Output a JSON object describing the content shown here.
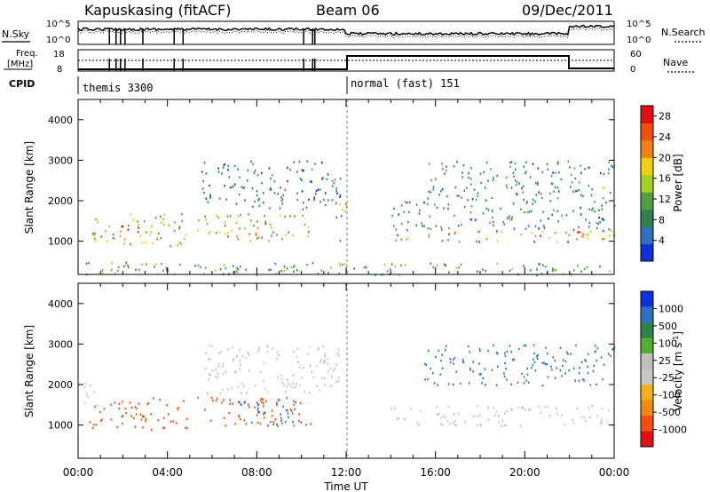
{
  "header": {
    "station": "Kapuskasing (fitACF)",
    "beam": "Beam 06",
    "date": "09/Dec/2011"
  },
  "noise_panel": {
    "left_label": "N.Sky",
    "right_label": "N.Search",
    "left_ticks": [
      "10^5",
      "10^0"
    ],
    "right_ticks": [
      "10^5",
      "10^0"
    ]
  },
  "freq_panel": {
    "left_label_line1": "Freq.",
    "left_label_line2": "[MHz]",
    "right_label": "Nave",
    "left_ticks": [
      "18",
      "8"
    ],
    "right_ticks": [
      "60",
      "0"
    ]
  },
  "cpid": {
    "label": "CPID",
    "segments": [
      {
        "name": "themis 3300",
        "start_hour": 0
      },
      {
        "name": "normal (fast) 151",
        "start_hour": 12
      }
    ]
  },
  "colors": {
    "power": [
      "#1030d8",
      "#3070c0",
      "#308050",
      "#50a040",
      "#a0d020",
      "#f0d010",
      "#f08010",
      "#f05010",
      "#e01010"
    ],
    "velocity": [
      "#e01010",
      "#f05010",
      "#f08a10",
      "#f0b020",
      "#c8c8c0",
      "#c0c0b8",
      "#50b030",
      "#308050",
      "#3070c0",
      "#1030d8"
    ]
  },
  "chart_data": [
    {
      "type": "heatmap",
      "panel": "power",
      "xlabel": "",
      "ylabel": "Slant Range [km]",
      "x_range_hours": [
        0,
        24
      ],
      "ylim": [
        180,
        4500
      ],
      "y_ticks": [
        "1000",
        "2000",
        "3000",
        "4000"
      ],
      "colorbar": {
        "title": "Power [dB]",
        "ticks": [
          "4",
          "8",
          "12",
          "16",
          "20",
          "24",
          "28"
        ],
        "range": [
          0,
          30
        ]
      },
      "bands": [
        {
          "x0": 0.5,
          "x1": 4.9,
          "r0": 900,
          "r1": 1700,
          "value": 18
        },
        {
          "x0": 1.8,
          "x1": 2.7,
          "r0": 1100,
          "r1": 1400,
          "value": 27
        },
        {
          "x0": 5.3,
          "x1": 10.5,
          "r0": 1000,
          "r1": 1700,
          "value": 17
        },
        {
          "x0": 5.5,
          "x1": 11.8,
          "r0": 1800,
          "r1": 3000,
          "value": 6
        },
        {
          "x0": 11.5,
          "x1": 12.0,
          "r0": 1000,
          "r1": 2000,
          "value": 12
        },
        {
          "x0": 14.0,
          "x1": 24.0,
          "r0": 1000,
          "r1": 1300,
          "value": 22
        },
        {
          "x0": 14.0,
          "x1": 24.0,
          "r0": 1300,
          "r1": 2000,
          "value": 8
        },
        {
          "x0": 15.5,
          "x1": 24.0,
          "r0": 2000,
          "r1": 3000,
          "value": 8
        },
        {
          "x0": 0.0,
          "x1": 24.0,
          "r0": 180,
          "r1": 500,
          "value": 10
        }
      ]
    },
    {
      "type": "heatmap",
      "panel": "velocity",
      "xlabel": "Time UT",
      "ylabel": "Slant Range [km]",
      "x_range_hours": [
        0,
        24
      ],
      "x_ticks": [
        "00:00",
        "04:00",
        "08:00",
        "12:00",
        "16:00",
        "20:00",
        "00:00"
      ],
      "ylim": [
        180,
        4500
      ],
      "y_ticks": [
        "1000",
        "2000",
        "3000",
        "4000"
      ],
      "colorbar": {
        "title": "Velocity [m s",
        "title_sup": "-1",
        "title_end": "]",
        "ticks": [
          "1000",
          "500",
          "100",
          "25",
          "-25",
          "-100",
          "-500",
          "-1000"
        ]
      },
      "bands": [
        {
          "x0": 0.5,
          "x1": 4.9,
          "r0": 900,
          "r1": 1700,
          "value": -150
        },
        {
          "x0": 5.3,
          "x1": 10.5,
          "r0": 1000,
          "r1": 1700,
          "value": -200
        },
        {
          "x0": 7.0,
          "x1": 10.0,
          "r0": 1000,
          "r1": 1600,
          "value": 200
        },
        {
          "x0": 5.5,
          "x1": 11.8,
          "r0": 1800,
          "r1": 3000,
          "value": 0
        },
        {
          "x0": 14.0,
          "x1": 24.0,
          "r0": 1000,
          "r1": 1500,
          "value": 0
        },
        {
          "x0": 15.5,
          "x1": 24.0,
          "r0": 2000,
          "r1": 3000,
          "value": 200
        },
        {
          "x0": 0.0,
          "x1": 0.8,
          "r0": 1500,
          "r1": 2100,
          "value": 0
        }
      ]
    }
  ]
}
